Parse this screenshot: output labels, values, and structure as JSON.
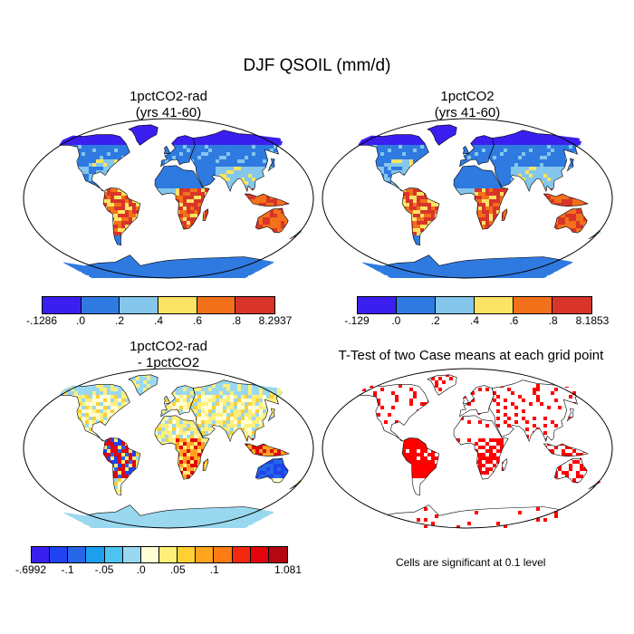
{
  "title": "DJF QSOIL (mm/d)",
  "panels": [
    {
      "line1": "1pctCO2-rad",
      "line2": "(yrs 41-60)"
    },
    {
      "line1": "1pctCO2",
      "line2": "(yrs 41-60)"
    },
    {
      "line1": "1pctCO2-rad",
      "line2": "- 1pctCO2"
    },
    {
      "line1": "T-Test of two Case means at each grid point",
      "line2": ""
    }
  ],
  "colorbars": [
    {
      "colors": [
        "#3b1ff0",
        "#2f7ae0",
        "#84c6ec",
        "#fbe463",
        "#f2711a",
        "#d8342a"
      ],
      "labels": [
        "-.1286",
        ".0",
        ".2",
        ".4",
        ".6",
        ".8",
        "8.2937"
      ]
    },
    {
      "colors": [
        "#3b1ff0",
        "#2f7ae0",
        "#84c6ec",
        "#fbe463",
        "#f2711a",
        "#d8342a"
      ],
      "labels": [
        "-.129",
        ".0",
        ".2",
        ".4",
        ".6",
        ".8",
        "8.1853"
      ]
    },
    {
      "colors": [
        "#3b1ff0",
        "#1f43f0",
        "#2766e6",
        "#1c9fee",
        "#4cc4ef",
        "#9ad8f0",
        "#ffffd5",
        "#ffef7a",
        "#ffcf33",
        "#ffa51d",
        "#ff7b14",
        "#f5270f",
        "#e3040c",
        "#b30712"
      ],
      "labels": [
        "-.6992",
        "-.1",
        "-.05",
        ".0",
        ".05",
        ".1",
        "1.081"
      ],
      "label_index": [
        0,
        2,
        4,
        6,
        8,
        10,
        14
      ]
    }
  ],
  "note": "Cells are significant at 0.1 level",
  "map_colors": {
    "ocean": "#ffffff",
    "sig": "#ff0000"
  }
}
